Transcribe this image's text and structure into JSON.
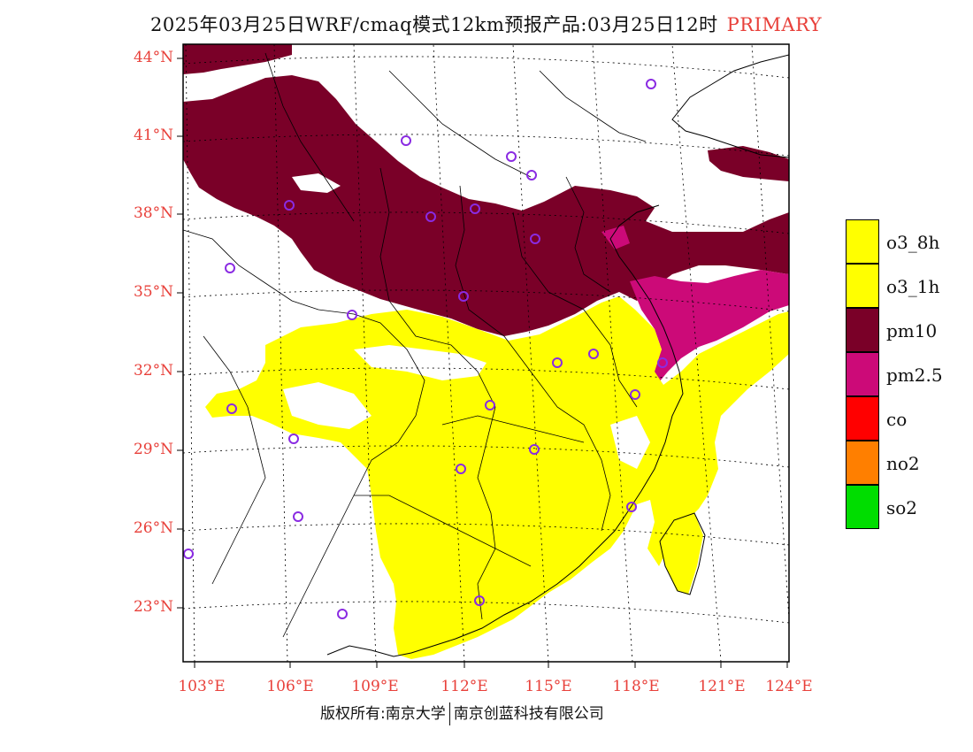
{
  "title": "2025年03月25日WRF/cmaq模式12km预报产品:03月25日12时",
  "title_tag": "PRIMARY",
  "lat_labels": [
    "44°N",
    "41°N",
    "38°N",
    "35°N",
    "32°N",
    "29°N",
    "26°N",
    "23°N"
  ],
  "lon_labels": [
    "103°E",
    "106°E",
    "109°E",
    "112°E",
    "115°E",
    "118°E",
    "121°E",
    "124°E"
  ],
  "legend": [
    {
      "label": "o3_8h",
      "color": "#ffff00"
    },
    {
      "label": "o3_1h",
      "color": "#ffff00"
    },
    {
      "label": "pm10",
      "color": "#7a0028"
    },
    {
      "label": "pm2.5",
      "color": "#cc0a78"
    },
    {
      "label": "co",
      "color": "#ff0000"
    },
    {
      "label": "no2",
      "color": "#ff7f00"
    },
    {
      "label": "so2",
      "color": "#00dd00"
    }
  ],
  "footer": {
    "left": "版权所有:南京大学",
    "right": "南京创蓝科技有限公司"
  },
  "colors": {
    "label_red": "#e8403a",
    "pm10": "#7a0028",
    "pm25": "#cc0a78",
    "o3": "#ffff00",
    "station_marker": "#8a2be2"
  }
}
